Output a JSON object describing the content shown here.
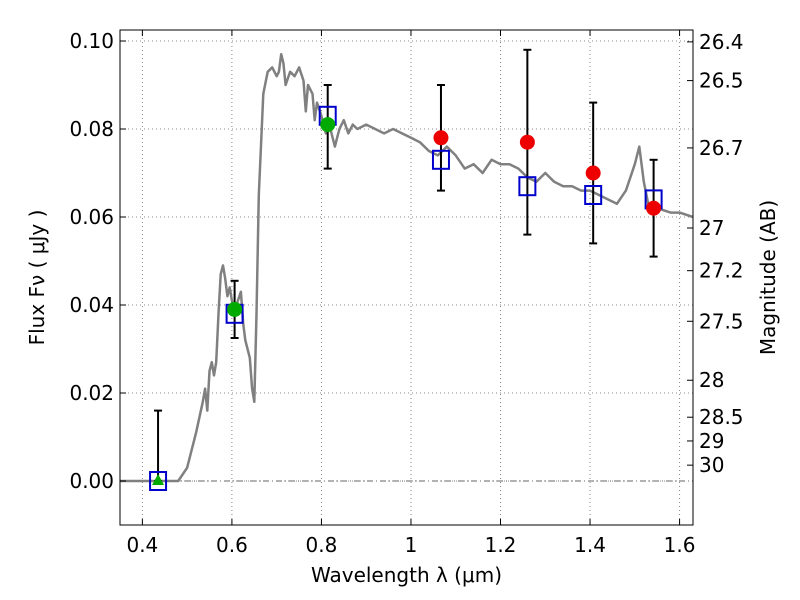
{
  "chart_data": {
    "type": "scatter",
    "xlabel": "Wavelength  λ (μm)",
    "ylabel": "Flux  Fν  ( μJy )",
    "ylabel_right": "Magnitude (AB)",
    "xlim": [
      0.35,
      1.63
    ],
    "ylim": [
      -0.01,
      0.1025
    ],
    "grid": true,
    "x_ticks": [
      0.4,
      0.6,
      0.8,
      1.0,
      1.2,
      1.4,
      1.6
    ],
    "x_tick_labels": [
      "0.4",
      "0.6",
      "0.8",
      "1",
      "1.2",
      "1.4",
      "1.6"
    ],
    "y_ticks": [
      0.0,
      0.02,
      0.04,
      0.06,
      0.08,
      0.1
    ],
    "y_tick_labels": [
      "0.00",
      "0.02",
      "0.04",
      "0.06",
      "0.08",
      "0.10"
    ],
    "mag_ticks": [
      {
        "label": "26.4",
        "flux": 0.0998
      },
      {
        "label": "26.5",
        "flux": 0.091
      },
      {
        "label": "26.7",
        "flux": 0.0757
      },
      {
        "label": "27",
        "flux": 0.0575
      },
      {
        "label": "27.2",
        "flux": 0.0478
      },
      {
        "label": "27.5",
        "flux": 0.0363
      },
      {
        "label": "28",
        "flux": 0.0229
      },
      {
        "label": "28.5",
        "flux": 0.0145
      },
      {
        "label": "29",
        "flux": 0.0091
      },
      {
        "label": "30",
        "flux": 0.0036
      }
    ],
    "colors": {
      "model": "#808080",
      "box": "#0000cc",
      "red": "#ee0000",
      "green": "#00aa00",
      "errorbar": "#000000",
      "grid": "#888888"
    },
    "series": [
      {
        "kind": "model_sed",
        "points": [
          [
            0.35,
            0.0
          ],
          [
            0.48,
            0.0
          ],
          [
            0.5,
            0.003
          ],
          [
            0.52,
            0.011
          ],
          [
            0.535,
            0.018
          ],
          [
            0.54,
            0.021
          ],
          [
            0.545,
            0.016
          ],
          [
            0.55,
            0.025
          ],
          [
            0.555,
            0.027
          ],
          [
            0.56,
            0.024
          ],
          [
            0.565,
            0.027
          ],
          [
            0.57,
            0.038
          ],
          [
            0.575,
            0.047
          ],
          [
            0.58,
            0.049
          ],
          [
            0.585,
            0.046
          ],
          [
            0.59,
            0.042
          ],
          [
            0.595,
            0.044
          ],
          [
            0.6,
            0.041
          ],
          [
            0.605,
            0.038
          ],
          [
            0.61,
            0.04
          ],
          [
            0.62,
            0.043
          ],
          [
            0.625,
            0.036
          ],
          [
            0.63,
            0.032
          ],
          [
            0.64,
            0.028
          ],
          [
            0.645,
            0.021
          ],
          [
            0.65,
            0.018
          ],
          [
            0.655,
            0.038
          ],
          [
            0.66,
            0.065
          ],
          [
            0.67,
            0.088
          ],
          [
            0.68,
            0.093
          ],
          [
            0.69,
            0.094
          ],
          [
            0.7,
            0.092
          ],
          [
            0.705,
            0.093
          ],
          [
            0.71,
            0.097
          ],
          [
            0.715,
            0.095
          ],
          [
            0.72,
            0.09
          ],
          [
            0.73,
            0.093
          ],
          [
            0.74,
            0.092
          ],
          [
            0.75,
            0.094
          ],
          [
            0.76,
            0.091
          ],
          [
            0.765,
            0.084
          ],
          [
            0.77,
            0.09
          ],
          [
            0.78,
            0.088
          ],
          [
            0.785,
            0.082
          ],
          [
            0.79,
            0.086
          ],
          [
            0.8,
            0.083
          ],
          [
            0.81,
            0.079
          ],
          [
            0.82,
            0.08
          ],
          [
            0.83,
            0.076
          ],
          [
            0.835,
            0.078
          ],
          [
            0.84,
            0.08
          ],
          [
            0.85,
            0.082
          ],
          [
            0.86,
            0.079
          ],
          [
            0.87,
            0.081
          ],
          [
            0.88,
            0.08
          ],
          [
            0.9,
            0.081
          ],
          [
            0.92,
            0.08
          ],
          [
            0.94,
            0.079
          ],
          [
            0.96,
            0.08
          ],
          [
            0.98,
            0.079
          ],
          [
            1.0,
            0.078
          ],
          [
            1.02,
            0.077
          ],
          [
            1.04,
            0.075
          ],
          [
            1.06,
            0.074
          ],
          [
            1.08,
            0.076
          ],
          [
            1.1,
            0.074
          ],
          [
            1.12,
            0.071
          ],
          [
            1.14,
            0.072
          ],
          [
            1.16,
            0.07
          ],
          [
            1.18,
            0.073
          ],
          [
            1.2,
            0.072
          ],
          [
            1.22,
            0.072
          ],
          [
            1.24,
            0.071
          ],
          [
            1.26,
            0.069
          ],
          [
            1.28,
            0.068
          ],
          [
            1.3,
            0.07
          ],
          [
            1.32,
            0.068
          ],
          [
            1.34,
            0.067
          ],
          [
            1.36,
            0.067
          ],
          [
            1.38,
            0.066
          ],
          [
            1.4,
            0.066
          ],
          [
            1.42,
            0.065
          ],
          [
            1.44,
            0.064
          ],
          [
            1.46,
            0.063
          ],
          [
            1.48,
            0.066
          ],
          [
            1.5,
            0.072
          ],
          [
            1.51,
            0.076
          ],
          [
            1.52,
            0.068
          ],
          [
            1.53,
            0.063
          ],
          [
            1.55,
            0.062
          ],
          [
            1.58,
            0.061
          ],
          [
            1.6,
            0.061
          ],
          [
            1.63,
            0.06
          ]
        ]
      },
      {
        "kind": "errorbars",
        "points": [
          {
            "x": 0.435,
            "low": 0.0,
            "high": 0.016
          },
          {
            "x": 0.606,
            "low": 0.0325,
            "high": 0.0455
          },
          {
            "x": 0.814,
            "low": 0.071,
            "high": 0.09
          },
          {
            "x": 1.067,
            "low": 0.066,
            "high": 0.09
          },
          {
            "x": 1.26,
            "low": 0.056,
            "high": 0.098
          },
          {
            "x": 1.407,
            "low": 0.054,
            "high": 0.086
          },
          {
            "x": 1.542,
            "low": 0.051,
            "high": 0.073
          }
        ]
      },
      {
        "kind": "model_boxes",
        "points": [
          [
            0.435,
            0.0
          ],
          [
            0.606,
            0.038
          ],
          [
            0.814,
            0.083
          ],
          [
            1.067,
            0.073
          ],
          [
            1.26,
            0.067
          ],
          [
            1.407,
            0.065
          ],
          [
            1.542,
            0.064
          ]
        ]
      },
      {
        "kind": "observed_red",
        "points": [
          [
            1.067,
            0.078
          ],
          [
            1.26,
            0.077
          ],
          [
            1.407,
            0.07
          ],
          [
            1.542,
            0.062
          ]
        ]
      },
      {
        "kind": "observed_green",
        "points": [
          [
            0.606,
            0.039
          ],
          [
            0.814,
            0.081
          ]
        ]
      },
      {
        "kind": "upper_limit_triangle",
        "points": [
          [
            0.435,
            0.0
          ]
        ]
      }
    ]
  }
}
